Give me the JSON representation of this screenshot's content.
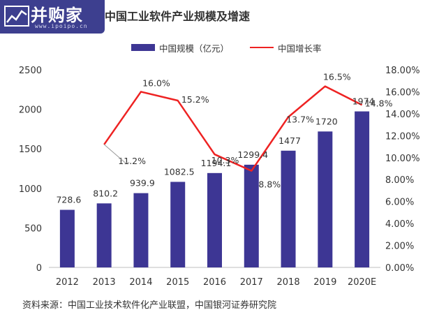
{
  "logo": {
    "text": "并购家",
    "subtext": "www.ipoipo.cn",
    "icon": "chart-trend-icon"
  },
  "source": "资料来源：中国工业技术软件化产业联盟，中国银河证券研究院",
  "colors": {
    "bar": "#3d3694",
    "line": "#ee2222",
    "logo_bg": "#3d3f8f"
  },
  "chart_data": {
    "type": "bar",
    "title": "中国工业软件产业规模及增速",
    "categories": [
      "2012",
      "2013",
      "2014",
      "2015",
      "2016",
      "2017",
      "2018",
      "2019",
      "2020E"
    ],
    "series": [
      {
        "name": "中国规模（亿元）",
        "type": "bar",
        "axis": "left",
        "values": [
          728.6,
          810.2,
          939.9,
          1082.5,
          1194.1,
          1299.4,
          1477,
          1720,
          1974
        ],
        "labels": [
          "728.6",
          "810.2",
          "939.9",
          "1082.5",
          "1194.1",
          "1299.4",
          "1477",
          "1720",
          "1974"
        ]
      },
      {
        "name": "中国增长率",
        "type": "line",
        "axis": "right",
        "values": [
          null,
          11.2,
          16.0,
          15.2,
          10.3,
          8.8,
          13.7,
          16.5,
          14.8
        ],
        "labels": [
          "",
          "11.2%",
          "16.0%",
          "15.2%",
          "10.3%",
          "8.8%",
          "13.7%",
          "16.5%",
          "14.8%"
        ]
      }
    ],
    "y_left": {
      "min": 0,
      "max": 2500,
      "ticks": [
        "0",
        "500",
        "1000",
        "1500",
        "2000",
        "2500"
      ]
    },
    "y_right": {
      "min": 0,
      "max": 18,
      "ticks": [
        "0.00%",
        "2.00%",
        "4.00%",
        "6.00%",
        "8.00%",
        "10.00%",
        "12.00%",
        "14.00%",
        "16.00%",
        "18.00%"
      ]
    },
    "legend_position": "top",
    "grid": false
  }
}
